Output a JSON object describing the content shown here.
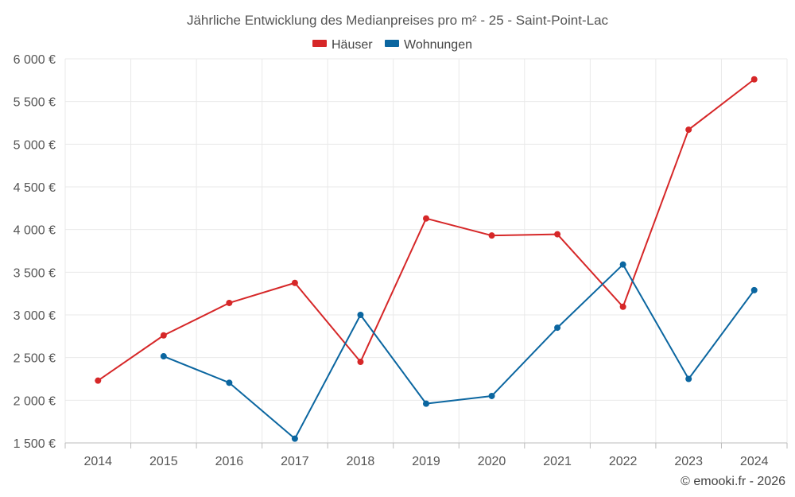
{
  "chart_data": {
    "type": "line",
    "title": "Jährliche Entwicklung des Medianpreises pro m² - 25 - Saint-Point-Lac",
    "xlabel": "",
    "ylabel": "",
    "categories": [
      "2014",
      "2015",
      "2016",
      "2017",
      "2018",
      "2019",
      "2020",
      "2021",
      "2022",
      "2023",
      "2024"
    ],
    "ylim": [
      1500,
      6000
    ],
    "yticks": [
      1500,
      2000,
      2500,
      3000,
      3500,
      4000,
      4500,
      5000,
      5500,
      6000
    ],
    "ytick_labels": [
      "1 500 €",
      "2 000 €",
      "2 500 €",
      "3 000 €",
      "3 500 €",
      "4 000 €",
      "4 500 €",
      "5 000 €",
      "5 500 €",
      "6 000 €"
    ],
    "grid": true,
    "legend_position": "top-center",
    "series": [
      {
        "name": "Häuser",
        "color": "#d62728",
        "values": [
          2230,
          2760,
          3140,
          3375,
          2450,
          4130,
          3930,
          3945,
          3095,
          5170,
          5760
        ]
      },
      {
        "name": "Wohnungen",
        "color": "#0b66a0",
        "values": [
          null,
          2515,
          2205,
          1550,
          3000,
          1960,
          2050,
          2850,
          3590,
          2250,
          3290
        ]
      }
    ]
  },
  "credit": "© emooki.fr - 2026"
}
